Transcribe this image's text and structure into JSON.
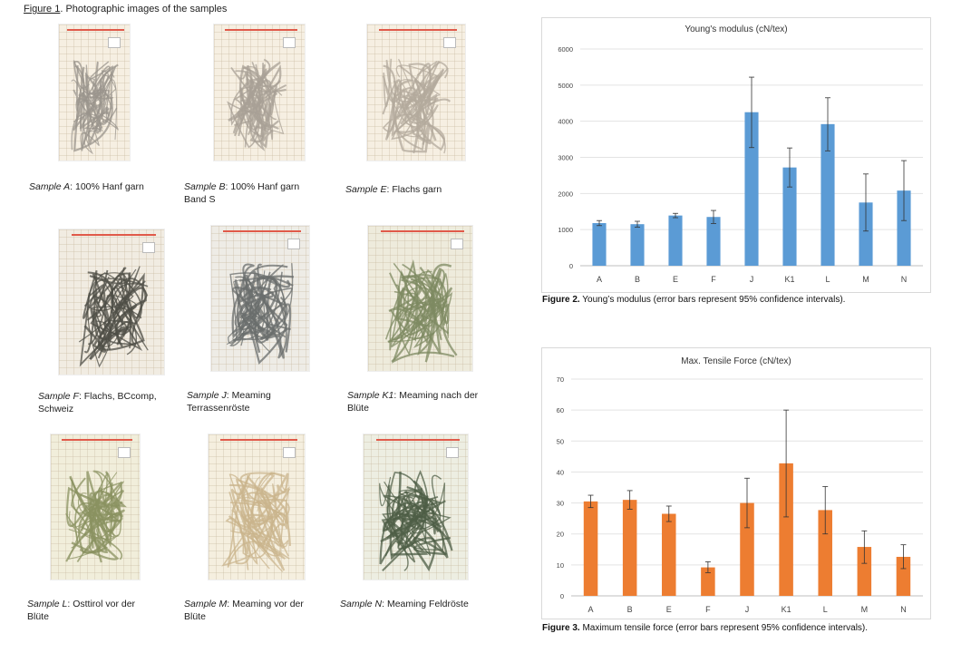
{
  "figure1": {
    "label": "Figure 1",
    "title_rest": ". Photographic images of the samples",
    "samples": [
      {
        "id": "A",
        "name": "Sample A",
        "desc": ": 100% Hanf garn"
      },
      {
        "id": "B",
        "name": "Sample B",
        "desc": ": 100% Hanf garn",
        "desc2": "Band S"
      },
      {
        "id": "E",
        "name": "Sample E",
        "desc": ": Flachs garn"
      },
      {
        "id": "F",
        "name": "Sample F",
        "desc": ": Flachs, BCcomp,",
        "desc2": "Schweiz"
      },
      {
        "id": "J",
        "name": "Sample J",
        "desc": ": Meaming",
        "desc2": "Terrassenröste"
      },
      {
        "id": "K1",
        "name": "Sample K1",
        "desc": ": Meaming nach der",
        "desc2": "Blüte"
      },
      {
        "id": "L",
        "name": "Sample L",
        "desc": ": Osttirol vor der",
        "desc2": "Blüte"
      },
      {
        "id": "M",
        "name": "Sample M",
        "desc": ": Meaming vor der",
        "desc2": "Blüte"
      },
      {
        "id": "N",
        "name": "Sample N",
        "desc": ": Meaming Feldröste"
      }
    ]
  },
  "figure2": {
    "label": "Figure 2.",
    "caption": " Young’s modulus (error bars represent 95% confidence intervals)."
  },
  "figure3": {
    "label": "Figure 3.",
    "caption": " Maximum tensile force (error bars represent 95% confidence intervals)."
  },
  "chart_data": [
    {
      "type": "bar",
      "title": "Young's modulus (cN/tex)",
      "categories": [
        "A",
        "B",
        "E",
        "F",
        "J",
        "K1",
        "L",
        "M",
        "N"
      ],
      "values": [
        1180,
        1150,
        1390,
        1350,
        4250,
        2720,
        3920,
        1750,
        2080
      ],
      "error_low": [
        1110,
        1070,
        1330,
        1170,
        3270,
        2180,
        3180,
        960,
        1250
      ],
      "error_high": [
        1250,
        1230,
        1450,
        1530,
        5220,
        3260,
        4650,
        2540,
        2910
      ],
      "ylim": [
        0,
        6000
      ],
      "yticks": [
        0,
        1000,
        2000,
        3000,
        4000,
        5000,
        6000
      ],
      "color": "#5b9bd5",
      "grid": true
    },
    {
      "type": "bar",
      "title": "Max. Tensile Force (cN/tex)",
      "categories": [
        "A",
        "B",
        "E",
        "F",
        "J",
        "K1",
        "L",
        "M",
        "N"
      ],
      "values": [
        30.5,
        31,
        26.5,
        9.2,
        30,
        42.8,
        27.7,
        15.8,
        12.6
      ],
      "error_low": [
        28.5,
        28,
        24,
        7.5,
        22,
        25.5,
        20,
        10.5,
        8.8
      ],
      "error_high": [
        32.5,
        34,
        29,
        11,
        38,
        60,
        35.3,
        21,
        16.5
      ],
      "ylim": [
        0,
        70
      ],
      "yticks": [
        0,
        10,
        20,
        30,
        40,
        50,
        60,
        70
      ],
      "color": "#ed7d31",
      "grid": true
    }
  ]
}
